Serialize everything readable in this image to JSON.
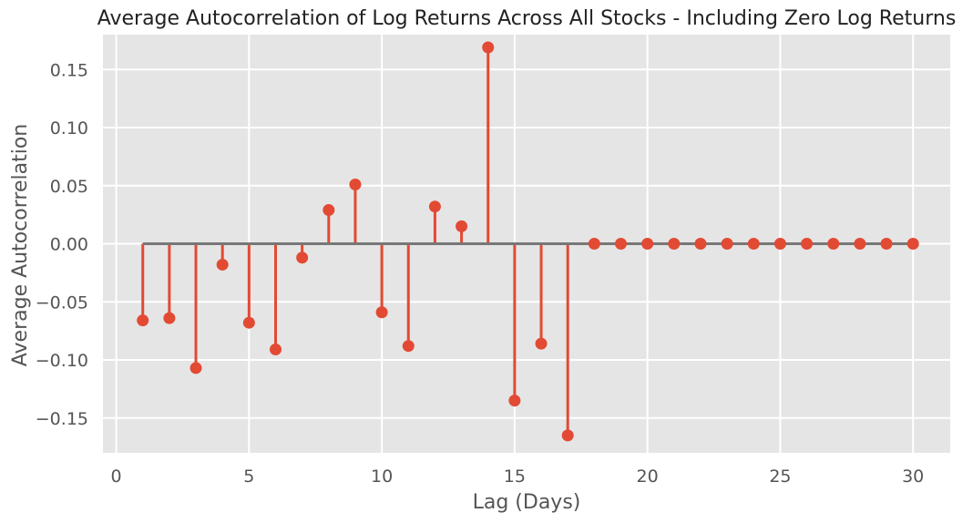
{
  "chart_data": {
    "type": "stem",
    "title": "Average Autocorrelation of Log Returns Across All Stocks - Including Zero Log Returns",
    "xlabel": "Lag (Days)",
    "ylabel": "Average Autocorrelation",
    "xlim": [
      -0.5,
      31.4
    ],
    "ylim": [
      -0.18,
      0.18
    ],
    "xticks": [
      0,
      5,
      10,
      15,
      20,
      25,
      30
    ],
    "xtick_labels": [
      "0",
      "5",
      "10",
      "15",
      "20",
      "25",
      "30"
    ],
    "yticks": [
      -0.15,
      -0.1,
      -0.05,
      0.0,
      0.05,
      0.1,
      0.15
    ],
    "ytick_labels": [
      "−0.15",
      "−0.10",
      "−0.05",
      "0.00",
      "0.05",
      "0.10",
      "0.15"
    ],
    "grid": true,
    "x": [
      1,
      2,
      3,
      4,
      5,
      6,
      7,
      8,
      9,
      10,
      11,
      12,
      13,
      14,
      15,
      16,
      17,
      18,
      19,
      20,
      21,
      22,
      23,
      24,
      25,
      26,
      27,
      28,
      29,
      30
    ],
    "values": [
      -0.066,
      -0.064,
      -0.107,
      -0.018,
      -0.068,
      -0.091,
      -0.012,
      0.029,
      0.051,
      -0.059,
      -0.088,
      0.032,
      0.015,
      0.169,
      -0.135,
      -0.086,
      -0.165,
      0.0,
      0.0,
      0.0,
      0.0,
      0.0,
      0.0,
      0.0,
      0.0,
      0.0,
      0.0,
      0.0,
      0.0,
      0.0
    ],
    "colors": {
      "marker": "#E24A33",
      "stem": "#E24A33",
      "baseline": "#777777",
      "plot_background": "#E5E5E5",
      "grid": "#FFFFFF"
    }
  }
}
